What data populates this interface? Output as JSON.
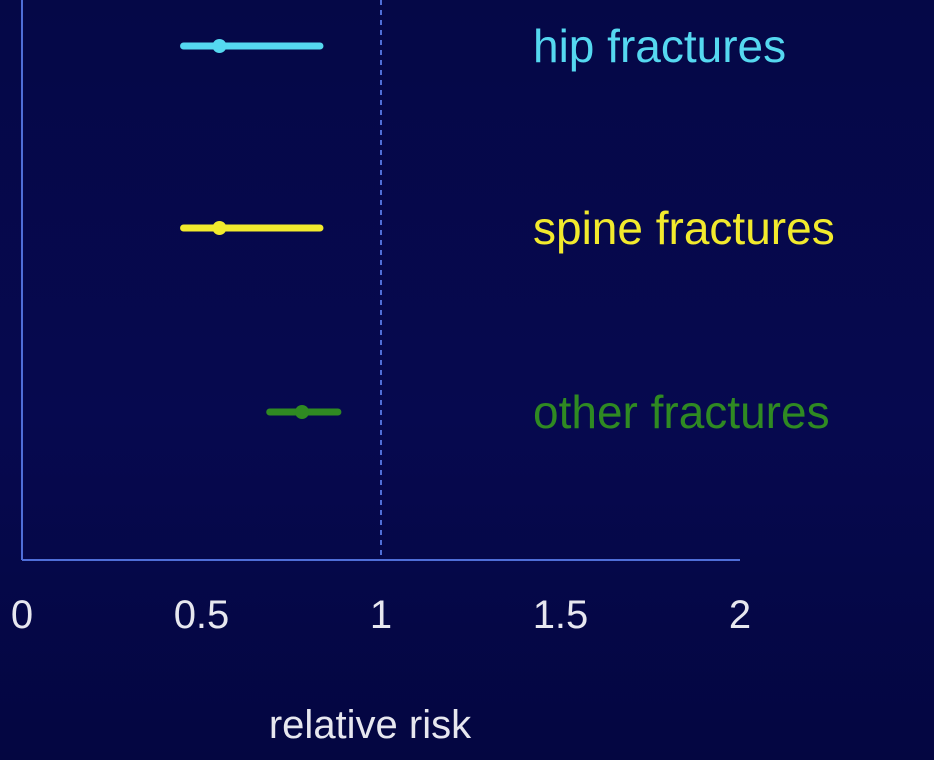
{
  "chart_data": {
    "type": "forest",
    "xlabel": "relative risk",
    "xlim": [
      0,
      2
    ],
    "x_ticks": [
      0,
      0.5,
      1,
      1.5,
      2
    ],
    "x_tick_labels": [
      "0",
      "0.5",
      "1",
      "1.5",
      "2"
    ],
    "reference_line": 1,
    "series": [
      {
        "name": "hip fractures",
        "estimate": 0.55,
        "lower": 0.45,
        "upper": 0.83,
        "color": "#55d8f0"
      },
      {
        "name": "spine fractures",
        "estimate": 0.55,
        "lower": 0.45,
        "upper": 0.83,
        "color": "#f2ea2d"
      },
      {
        "name": "other fractures",
        "estimate": 0.78,
        "lower": 0.69,
        "upper": 0.88,
        "color": "#2f8a22"
      }
    ]
  },
  "colors": {
    "background": "#050847",
    "axis": "#4f6ed8",
    "text": "#e7e7ef"
  }
}
